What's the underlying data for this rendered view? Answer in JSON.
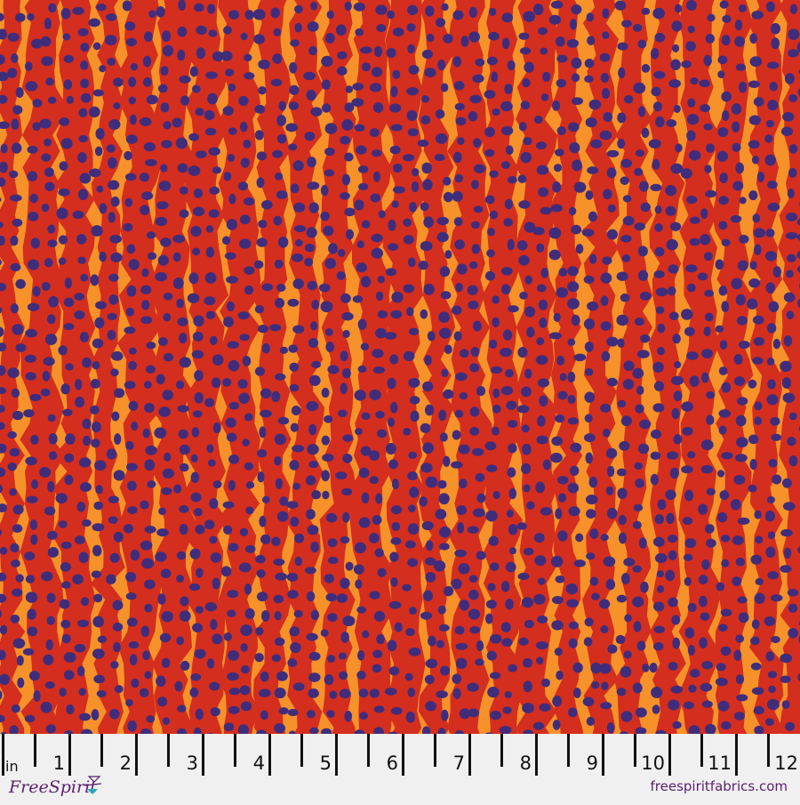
{
  "fabric": {
    "colors": {
      "background": "#f7922a",
      "stripe": "#d42e1e",
      "dot": "#3f2d7c"
    }
  },
  "ruler": {
    "unit": "in",
    "numbers": [
      "1",
      "2",
      "3",
      "4",
      "5",
      "6",
      "7",
      "8",
      "9",
      "10",
      "11",
      "12"
    ]
  },
  "brand": {
    "logo_text": "FreeSpirit",
    "url": "freespiritfabrics.com"
  }
}
